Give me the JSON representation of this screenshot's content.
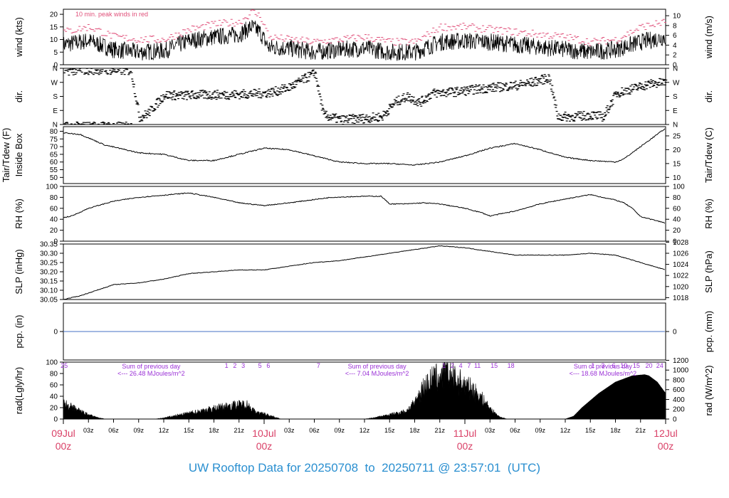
{
  "caption": "UW Rooftop Data for 20250708  to  20250711 @ 23:57:01  (UTC)",
  "chart_data": {
    "type": "line",
    "time_unit": "hours since 09Jul 00z",
    "time_range": [
      0,
      72
    ],
    "x_ticks_minor": [
      "03z",
      "06z",
      "09z",
      "12z",
      "15z",
      "18z",
      "21z",
      "03z",
      "06z",
      "09z",
      "12z",
      "15z",
      "18z",
      "21z",
      "03z",
      "06z",
      "09z",
      "12z",
      "15z",
      "18z",
      "21z"
    ],
    "x_ticks_major": [
      {
        "day": "09Jul",
        "hour": "00z"
      },
      {
        "day": "10Jul",
        "hour": "00z"
      },
      {
        "day": "11Jul",
        "hour": "00z"
      },
      {
        "day": "12Jul",
        "hour": "00z"
      }
    ],
    "colors": {
      "axis": "#000000",
      "peak": "#e0507a",
      "precip": "#4472c4",
      "annot": "#9a30d6",
      "day_label": "#d93f66",
      "caption": "#2a8fd0"
    },
    "panels": [
      {
        "id": "wind",
        "left_label": "wind (kts)",
        "right_label": "wind (m/s)",
        "ylim": [
          0,
          22
        ],
        "left_ticks": [
          0,
          5,
          10,
          15,
          20
        ],
        "right_ticks": [
          0,
          2,
          4,
          6,
          8,
          10
        ],
        "annotation": "10 min. peak winds in red",
        "series_points": [
          [
            0,
            8
          ],
          [
            3,
            9.5
          ],
          [
            6,
            6
          ],
          [
            9,
            5
          ],
          [
            12,
            5.5
          ],
          [
            15,
            9.5
          ],
          [
            18,
            11
          ],
          [
            21,
            12
          ],
          [
            22.5,
            15
          ],
          [
            23.5,
            13
          ],
          [
            24.5,
            7
          ],
          [
            27,
            6.5
          ],
          [
            30,
            5
          ],
          [
            33,
            6
          ],
          [
            36,
            6.5
          ],
          [
            39,
            5
          ],
          [
            42,
            5
          ],
          [
            45,
            9
          ],
          [
            48,
            9.5
          ],
          [
            51,
            9
          ],
          [
            54,
            8
          ],
          [
            57,
            7
          ],
          [
            60,
            6
          ],
          [
            63,
            5
          ],
          [
            66,
            6
          ],
          [
            69,
            9
          ],
          [
            72,
            11
          ]
        ],
        "peak_points": [
          [
            0,
            13
          ],
          [
            3,
            15
          ],
          [
            6,
            11
          ],
          [
            9,
            10
          ],
          [
            12,
            10
          ],
          [
            15,
            14
          ],
          [
            18,
            16
          ],
          [
            21,
            17
          ],
          [
            22.5,
            21
          ],
          [
            23.5,
            19
          ],
          [
            24.5,
            11
          ],
          [
            27,
            10
          ],
          [
            30,
            9
          ],
          [
            33,
            10
          ],
          [
            36,
            11
          ],
          [
            39,
            9
          ],
          [
            42,
            9
          ],
          [
            45,
            15
          ],
          [
            48,
            15
          ],
          [
            51,
            14
          ],
          [
            54,
            13
          ],
          [
            57,
            12
          ],
          [
            60,
            11
          ],
          [
            63,
            9
          ],
          [
            66,
            10
          ],
          [
            69,
            15
          ],
          [
            72,
            17
          ]
        ]
      },
      {
        "id": "dir",
        "left_label": "dir.",
        "right_label": "dir.",
        "tick_labels": [
          "N",
          "E",
          "S",
          "W",
          "N"
        ],
        "ylim": [
          0,
          360
        ],
        "series_points": [
          [
            0,
            345
          ],
          [
            4,
            350
          ],
          [
            8,
            345
          ],
          [
            9,
            45
          ],
          [
            10,
            70
          ],
          [
            12,
            190
          ],
          [
            14,
            185
          ],
          [
            16,
            190
          ],
          [
            19,
            190
          ],
          [
            22,
            195
          ],
          [
            24,
            200
          ],
          [
            25.5,
            215
          ],
          [
            27,
            240
          ],
          [
            30,
            330
          ],
          [
            31,
            60
          ],
          [
            33,
            30
          ],
          [
            36,
            40
          ],
          [
            38,
            50
          ],
          [
            39.5,
            140
          ],
          [
            41,
            180
          ],
          [
            42.5,
            140
          ],
          [
            44,
            200
          ],
          [
            47,
            210
          ],
          [
            50,
            230
          ],
          [
            52,
            240
          ],
          [
            54,
            250
          ],
          [
            56,
            270
          ],
          [
            58,
            300
          ],
          [
            59,
            50
          ],
          [
            61,
            50
          ],
          [
            63,
            60
          ],
          [
            64.5,
            50
          ],
          [
            66,
            200
          ],
          [
            68,
            230
          ],
          [
            70,
            260
          ],
          [
            72,
            270
          ]
        ]
      },
      {
        "id": "temp",
        "left_label": "Inside Box",
        "left_label_outer": "Tair/Tdew (F)",
        "right_label": "Tair/Tdew (C)",
        "ylim": [
          46,
          83
        ],
        "left_ticks": [
          50,
          55,
          60,
          65,
          70,
          75,
          80
        ],
        "right_ticks": [
          10,
          15,
          20,
          25
        ],
        "series_points": [
          [
            0,
            79
          ],
          [
            2,
            78
          ],
          [
            5,
            71
          ],
          [
            9,
            66
          ],
          [
            12,
            65
          ],
          [
            15,
            61
          ],
          [
            18,
            61
          ],
          [
            21,
            65
          ],
          [
            24,
            69
          ],
          [
            27,
            68
          ],
          [
            30,
            64
          ],
          [
            33,
            60
          ],
          [
            36,
            59
          ],
          [
            39,
            59
          ],
          [
            42,
            58
          ],
          [
            45,
            60
          ],
          [
            48,
            64
          ],
          [
            51,
            69
          ],
          [
            54,
            72
          ],
          [
            57,
            68
          ],
          [
            60,
            63
          ],
          [
            63,
            61
          ],
          [
            66,
            60
          ],
          [
            67,
            62
          ],
          [
            68,
            66
          ],
          [
            70,
            74
          ],
          [
            71,
            78
          ],
          [
            72,
            82
          ]
        ]
      },
      {
        "id": "rh",
        "left_label": "RH (%)",
        "right_label": "RH (%)",
        "ylim": [
          0,
          100
        ],
        "left_ticks": [
          0,
          20,
          40,
          60,
          80,
          100
        ],
        "right_ticks": [
          0,
          20,
          40,
          60,
          80,
          100
        ],
        "series_points": [
          [
            0,
            43
          ],
          [
            1,
            46
          ],
          [
            3,
            60
          ],
          [
            6,
            73
          ],
          [
            9,
            80
          ],
          [
            12,
            84
          ],
          [
            15,
            88
          ],
          [
            18,
            80
          ],
          [
            21,
            70
          ],
          [
            24,
            65
          ],
          [
            27,
            70
          ],
          [
            30,
            76
          ],
          [
            32,
            80
          ],
          [
            36,
            82
          ],
          [
            38,
            82
          ],
          [
            39,
            68
          ],
          [
            41,
            68
          ],
          [
            43,
            70
          ],
          [
            45,
            68
          ],
          [
            48,
            60
          ],
          [
            50,
            52
          ],
          [
            51,
            46
          ],
          [
            54,
            55
          ],
          [
            57,
            68
          ],
          [
            60,
            77
          ],
          [
            63,
            85
          ],
          [
            64.5,
            80
          ],
          [
            66,
            75
          ],
          [
            67,
            70
          ],
          [
            68,
            60
          ],
          [
            69,
            45
          ],
          [
            72,
            33
          ]
        ]
      },
      {
        "id": "slp",
        "left_label": "SLP (inHg)",
        "right_label": "SLP (hPa)",
        "ylim": [
          30.05,
          30.35
        ],
        "left_ticks": [
          30.05,
          30.1,
          30.15,
          30.2,
          30.25,
          30.3,
          30.35
        ],
        "right_ticks": [
          1018,
          1020,
          1022,
          1024,
          1026,
          1028
        ],
        "right_tick_values_inhg": [
          30.06,
          30.12,
          30.18,
          30.24,
          30.3,
          30.36
        ],
        "series_points": [
          [
            0,
            30.05
          ],
          [
            2,
            30.07
          ],
          [
            4,
            30.1
          ],
          [
            6,
            30.13
          ],
          [
            9,
            30.14
          ],
          [
            12,
            30.16
          ],
          [
            15,
            30.19
          ],
          [
            18,
            30.2
          ],
          [
            21,
            30.21
          ],
          [
            24,
            30.21
          ],
          [
            27,
            30.23
          ],
          [
            30,
            30.25
          ],
          [
            33,
            30.26
          ],
          [
            36,
            30.28
          ],
          [
            39,
            30.3
          ],
          [
            42,
            30.32
          ],
          [
            45,
            30.34
          ],
          [
            48,
            30.33
          ],
          [
            51,
            30.31
          ],
          [
            54,
            30.29
          ],
          [
            57,
            30.29
          ],
          [
            60,
            30.29
          ],
          [
            63,
            30.3
          ],
          [
            66,
            30.29
          ],
          [
            69,
            30.25
          ],
          [
            72,
            30.21
          ]
        ]
      },
      {
        "id": "pcp",
        "left_label": "pcp. (in)",
        "right_label": "pcp. (mm)",
        "ylim": [
          -1,
          1
        ],
        "left_ticks": [
          0
        ],
        "right_ticks": [
          0
        ],
        "series_points": [
          [
            0,
            0
          ],
          [
            72,
            0
          ]
        ]
      },
      {
        "id": "rad",
        "type": "area",
        "left_label": "rad(Lgly/hr)",
        "right_label": "rad (W/m^2)",
        "ylim": [
          0,
          100
        ],
        "left_ticks": [
          0,
          20,
          40,
          60,
          80,
          100
        ],
        "right_ticks": [
          0,
          200,
          400,
          600,
          800,
          1000,
          1200
        ],
        "right_tick_values_lgly": [
          0,
          17.2,
          34.4,
          51.6,
          68.8,
          86.0,
          103.2
        ],
        "series_points": [
          [
            0,
            30
          ],
          [
            1,
            22
          ],
          [
            2,
            15
          ],
          [
            3,
            8
          ],
          [
            4,
            3
          ],
          [
            5,
            0
          ],
          [
            11,
            0
          ],
          [
            12,
            2
          ],
          [
            14,
            8
          ],
          [
            16,
            14
          ],
          [
            18,
            20
          ],
          [
            20,
            26
          ],
          [
            22,
            28
          ],
          [
            23,
            12
          ],
          [
            24,
            10
          ],
          [
            25,
            5
          ],
          [
            26,
            0
          ],
          [
            36,
            0
          ],
          [
            37,
            2
          ],
          [
            39,
            8
          ],
          [
            41,
            15
          ],
          [
            42,
            30
          ],
          [
            43,
            60
          ],
          [
            44,
            75
          ],
          [
            45,
            82
          ],
          [
            46,
            88
          ],
          [
            47,
            75
          ],
          [
            48,
            65
          ],
          [
            49,
            55
          ],
          [
            50,
            40
          ],
          [
            51,
            20
          ],
          [
            52,
            5
          ],
          [
            53,
            0
          ],
          [
            60,
            0
          ],
          [
            61,
            5
          ],
          [
            62,
            20
          ],
          [
            64,
            45
          ],
          [
            66,
            65
          ],
          [
            68,
            76
          ],
          [
            69.5,
            78
          ],
          [
            70,
            76
          ],
          [
            71,
            65
          ],
          [
            72,
            45
          ]
        ],
        "annotations": [
          {
            "text": "Sum of previous day",
            "hour": 10.5
          },
          {
            "text": "<--- 26.48 MJoules/m^2",
            "hour": 10.5
          },
          {
            "text": "Sum of previous day",
            "hour": 37.5
          },
          {
            "text": "<--- 7.04 MJoules/m^2",
            "hour": 37.5
          },
          {
            "text": "Sum of previous day",
            "hour": 64.5
          },
          {
            "text": "<--- 18.68 MJoules/m^2",
            "hour": 64.5
          }
        ],
        "hour_markers": [
          {
            "label": "25",
            "hour": 0.1
          },
          {
            "label": "1",
            "hour": 19.5
          },
          {
            "label": "2",
            "hour": 20.5
          },
          {
            "label": "3",
            "hour": 21.5
          },
          {
            "label": "5",
            "hour": 23.5
          },
          {
            "label": "6",
            "hour": 24.5
          },
          {
            "label": "7",
            "hour": 30.5
          },
          {
            "label": "1",
            "hour": 45.5
          },
          {
            "label": "2",
            "hour": 46.5
          },
          {
            "label": "4",
            "hour": 47.5
          },
          {
            "label": "7",
            "hour": 48.5
          },
          {
            "label": "11",
            "hour": 49.5
          },
          {
            "label": "15",
            "hour": 51.5
          },
          {
            "label": "18",
            "hour": 53.5
          },
          {
            "label": "1",
            "hour": 63.3
          },
          {
            "label": "3",
            "hour": 64.5
          },
          {
            "label": "6",
            "hour": 65.8
          },
          {
            "label": "10",
            "hour": 67.0
          },
          {
            "label": "15",
            "hour": 68.5
          },
          {
            "label": "20",
            "hour": 70.0
          },
          {
            "label": "24",
            "hour": 71.3
          }
        ]
      }
    ]
  }
}
